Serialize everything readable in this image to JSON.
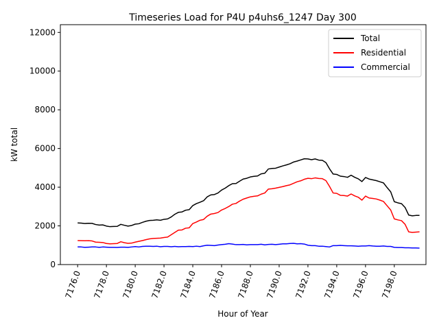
{
  "chart_data": {
    "type": "line",
    "title": "Timeseries Load for P4U p4uhs6_1247  Day 300",
    "xlabel": "Hour of Year",
    "ylabel": "kW total",
    "xlim": [
      7174.8,
      7200.2
    ],
    "ylim": [
      0,
      12400
    ],
    "xticks": [
      7176,
      7178,
      7180,
      7182,
      7184,
      7186,
      7188,
      7190,
      7192,
      7194,
      7196,
      7198
    ],
    "xtick_labels": [
      "7176.0",
      "7178.0",
      "7180.0",
      "7182.0",
      "7184.0",
      "7186.0",
      "7188.0",
      "7190.0",
      "7192.0",
      "7194.0",
      "7196.0",
      "7198.0"
    ],
    "yticks": [
      0,
      2000,
      4000,
      6000,
      8000,
      10000,
      12000
    ],
    "ytick_labels": [
      "0",
      "2000",
      "4000",
      "6000",
      "8000",
      "10000",
      "12000"
    ],
    "legend_position": "top-right",
    "x": [
      7176.0,
      7176.25,
      7176.5,
      7176.75,
      7177.0,
      7177.25,
      7177.5,
      7177.75,
      7178.0,
      7178.25,
      7178.5,
      7178.75,
      7179.0,
      7179.25,
      7179.5,
      7179.75,
      7180.0,
      7180.25,
      7180.5,
      7180.75,
      7181.0,
      7181.25,
      7181.5,
      7181.75,
      7182.0,
      7182.25,
      7182.5,
      7182.75,
      7183.0,
      7183.25,
      7183.5,
      7183.75,
      7184.0,
      7184.25,
      7184.5,
      7184.75,
      7185.0,
      7185.25,
      7185.5,
      7185.75,
      7186.0,
      7186.25,
      7186.5,
      7186.75,
      7187.0,
      7187.25,
      7187.5,
      7187.75,
      7188.0,
      7188.25,
      7188.5,
      7188.75,
      7189.0,
      7189.25,
      7189.5,
      7189.75,
      7190.0,
      7190.25,
      7190.5,
      7190.75,
      7191.0,
      7191.25,
      7191.5,
      7191.75,
      7192.0,
      7192.25,
      7192.5,
      7192.75,
      7193.0,
      7193.25,
      7193.5,
      7193.75,
      7194.0,
      7194.25,
      7194.5,
      7194.75,
      7195.0,
      7195.25,
      7195.5,
      7195.75,
      7196.0,
      7196.25,
      7196.5,
      7196.75,
      7197.0,
      7197.25,
      7197.5,
      7197.75,
      7198.0,
      7198.25,
      7198.5,
      7198.75,
      7199.0,
      7199.25,
      7199.5,
      7199.75
    ],
    "series": [
      {
        "name": "Total",
        "color": "#000000",
        "values": [
          2150,
          2145,
          2120,
          2135,
          2130,
          2070,
          2040,
          2050,
          1990,
          1960,
          1970,
          1975,
          2080,
          2030,
          1990,
          2020,
          2090,
          2110,
          2180,
          2240,
          2280,
          2290,
          2310,
          2290,
          2340,
          2360,
          2460,
          2600,
          2700,
          2720,
          2810,
          2840,
          3050,
          3150,
          3220,
          3300,
          3500,
          3600,
          3620,
          3700,
          3850,
          3950,
          4080,
          4180,
          4190,
          4310,
          4420,
          4460,
          4530,
          4560,
          4580,
          4690,
          4720,
          4940,
          4970,
          4980,
          5040,
          5100,
          5150,
          5210,
          5300,
          5350,
          5410,
          5470,
          5460,
          5420,
          5460,
          5400,
          5390,
          5270,
          4950,
          4680,
          4660,
          4570,
          4550,
          4510,
          4620,
          4510,
          4430,
          4290,
          4500,
          4420,
          4380,
          4340,
          4280,
          4220,
          3980,
          3760,
          3250,
          3190,
          3150,
          2950,
          2560,
          2520,
          2540,
          2540
        ]
      },
      {
        "name": "Residential",
        "color": "#ff0000",
        "values": [
          1240,
          1235,
          1230,
          1235,
          1220,
          1160,
          1150,
          1140,
          1090,
          1070,
          1080,
          1090,
          1180,
          1130,
          1100,
          1110,
          1160,
          1200,
          1240,
          1290,
          1330,
          1350,
          1360,
          1370,
          1400,
          1420,
          1540,
          1660,
          1780,
          1790,
          1880,
          1900,
          2120,
          2200,
          2290,
          2330,
          2500,
          2610,
          2640,
          2690,
          2820,
          2900,
          3000,
          3120,
          3160,
          3280,
          3380,
          3440,
          3500,
          3530,
          3550,
          3640,
          3700,
          3900,
          3920,
          3950,
          3990,
          4030,
          4080,
          4120,
          4200,
          4280,
          4330,
          4410,
          4460,
          4440,
          4480,
          4450,
          4440,
          4340,
          4040,
          3700,
          3680,
          3580,
          3570,
          3540,
          3650,
          3550,
          3480,
          3330,
          3540,
          3440,
          3420,
          3390,
          3330,
          3260,
          3040,
          2820,
          2360,
          2310,
          2270,
          2080,
          1690,
          1660,
          1680,
          1690
        ]
      },
      {
        "name": "Commercial",
        "color": "#0000ff",
        "values": [
          910,
          910,
          890,
          900,
          910,
          910,
          890,
          910,
          900,
          890,
          890,
          885,
          900,
          900,
          890,
          910,
          930,
          910,
          940,
          950,
          950,
          940,
          950,
          920,
          940,
          940,
          920,
          940,
          920,
          930,
          930,
          940,
          930,
          950,
          930,
          970,
          1000,
          990,
          980,
          1010,
          1030,
          1050,
          1080,
          1060,
          1030,
          1030,
          1040,
          1020,
          1030,
          1030,
          1030,
          1050,
          1020,
          1040,
          1050,
          1030,
          1050,
          1070,
          1070,
          1090,
          1100,
          1070,
          1080,
          1060,
          1000,
          980,
          980,
          950,
          950,
          930,
          910,
          980,
          980,
          990,
          980,
          970,
          970,
          960,
          950,
          960,
          960,
          980,
          960,
          950,
          950,
          960,
          940,
          940,
          890,
          880,
          880,
          870,
          870,
          860,
          860,
          850
        ]
      }
    ]
  }
}
